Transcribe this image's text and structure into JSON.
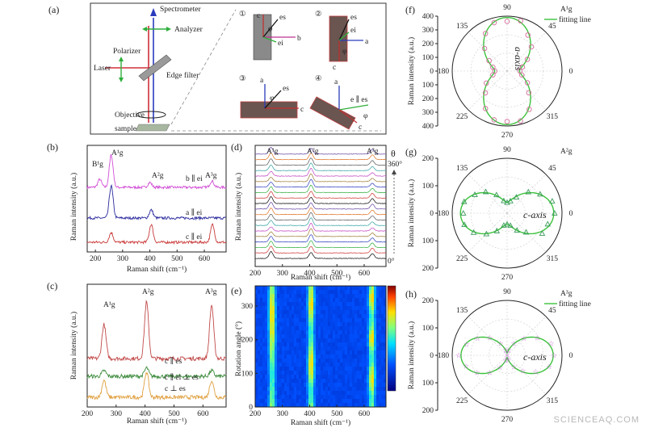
{
  "figure": {
    "watermark": "SCIENCEAQ.COM",
    "panel_labels": [
      "(a)",
      "(b)",
      "(c)",
      "(d)",
      "(e)",
      "(f)",
      "(g)",
      "(h)"
    ]
  },
  "panel_a": {
    "labels": {
      "spectrometer": "Spectrometer",
      "analyzer": "Analyzer",
      "polarizer": "Polarizer",
      "laser": "Laser",
      "edge_filter": "Edge filter",
      "objective": "Objective",
      "sample": "sample"
    },
    "inset_numbers": [
      "①",
      "②",
      "③",
      "④"
    ],
    "inset_axes": {
      "i1": [
        "c",
        "b",
        "es",
        "ei",
        "φ"
      ],
      "i2": [
        "es",
        "a",
        "ei",
        "c",
        "φ"
      ],
      "i3": [
        "a",
        "es",
        "c",
        "φ"
      ],
      "i4": [
        "a",
        "e ∥ es",
        "c",
        "φ"
      ]
    },
    "colors": {
      "laser": "#d0303a",
      "spectrometer": "#2b3bbd",
      "green": "#2fae3c"
    }
  },
  "panel_b": {
    "xlabel": "Raman shift (cm⁻¹)",
    "ylabel": "Raman intensity (a.u.)",
    "xticks": [
      "200",
      "300",
      "400",
      "500",
      "600"
    ],
    "peak_labels": [
      "B¹g",
      "A¹g",
      "A²g",
      "A³g"
    ],
    "trace_labels": [
      "b ∥ ei",
      "a ∥ ei",
      "c ∥ ei"
    ],
    "trace_colors": [
      "#d24fd6",
      "#2a2a9e",
      "#c93a3a"
    ]
  },
  "panel_c": {
    "xlabel": "Raman shift (cm⁻¹)",
    "ylabel": "Raman intensity (a.u.)",
    "xticks": [
      "200",
      "300",
      "400",
      "500",
      "600"
    ],
    "peak_labels": [
      "A¹g",
      "A²g",
      "A³g"
    ],
    "trace_labels": [
      "c ∥ es",
      "c ∥ ei ⊥ es",
      "c ⊥ es"
    ],
    "trace_colors": [
      "#c24a4a",
      "#3c8a3c",
      "#e0a040"
    ]
  },
  "panel_d": {
    "xlabel": "Raman shift (cm⁻¹)",
    "ylabel": "Raman intensity (a.u.)",
    "xticks": [
      "200",
      "300",
      "400",
      "500",
      "600"
    ],
    "peak_labels": [
      "A¹g",
      "A²g",
      "A³g"
    ],
    "theta_label": "θ",
    "theta_top": "360°",
    "theta_bottom": "0°"
  },
  "panel_e": {
    "xlabel": "Raman shift (cm⁻¹)",
    "ylabel": "Rotation angle (°)",
    "xticks": [
      "200",
      "300",
      "400",
      "500",
      "600"
    ],
    "yticks": [
      "0",
      "100",
      "200",
      "300"
    ]
  },
  "polar_common": {
    "angle_labels": [
      "90",
      "45",
      "0",
      "315",
      "270",
      "225",
      "180",
      "135"
    ],
    "ylabel": "Raman intensity (a.u.)",
    "fit_label": "fitting line"
  },
  "panel_f": {
    "legend_symbol": "A¹g",
    "axis_text": "a-axis",
    "ticks": [
      "400",
      "300",
      "200",
      "100",
      "0",
      "100",
      "200",
      "300",
      "400"
    ],
    "color": "#d36a9a"
  },
  "panel_g": {
    "legend_symbol": "A²g",
    "axis_text": "c-axis",
    "ticks": [
      "200",
      "100",
      "0",
      "100",
      "200"
    ],
    "color": "#3a9a5a"
  },
  "panel_h": {
    "legend_symbol": "A³g",
    "axis_text": "c-axis",
    "ticks": [
      "200",
      "100",
      "0",
      "100",
      "200"
    ],
    "color": "#c060d0"
  },
  "chart_data": [
    {
      "id": "panel_b",
      "type": "line",
      "xlabel": "Raman shift (cm⁻¹)",
      "ylabel": "Raman intensity (a.u.)",
      "xlim": [
        170,
        680
      ],
      "series": [
        {
          "name": "b ∥ ei",
          "peaks": [
            [
              216,
              0.25
            ],
            [
              258,
              1.0
            ],
            [
              400,
              0.15
            ],
            [
              628,
              0.2
            ]
          ]
        },
        {
          "name": "a ∥ ei",
          "peaks": [
            [
              258,
              1.0
            ],
            [
              405,
              0.25
            ]
          ]
        },
        {
          "name": "c ∥ ei",
          "peaks": [
            [
              258,
              0.3
            ],
            [
              405,
              0.55
            ],
            [
              630,
              0.55
            ]
          ]
        }
      ]
    },
    {
      "id": "panel_c",
      "type": "line",
      "xlabel": "Raman shift (cm⁻¹)",
      "ylabel": "Raman intensity (a.u.)",
      "xlim": [
        200,
        680
      ],
      "series": [
        {
          "name": "c ∥ es",
          "peaks": [
            [
              258,
              0.6
            ],
            [
              405,
              1.0
            ],
            [
              630,
              0.95
            ]
          ]
        },
        {
          "name": "c ∥ ei ⊥ es",
          "peaks": [
            [
              258,
              0.1
            ],
            [
              405,
              0.15
            ],
            [
              630,
              0.1
            ]
          ]
        },
        {
          "name": "c ⊥ es",
          "peaks": [
            [
              258,
              0.3
            ],
            [
              405,
              0.45
            ],
            [
              630,
              0.3
            ]
          ]
        }
      ]
    },
    {
      "id": "panel_d",
      "type": "line",
      "xlabel": "Raman shift (cm⁻¹)",
      "ylabel": "Raman intensity (a.u.)",
      "xlim": [
        200,
        680
      ],
      "theta_range_deg": [
        0,
        360
      ],
      "peaks_cm": [
        258,
        405,
        630
      ]
    },
    {
      "id": "panel_e",
      "type": "heatmap",
      "xlabel": "Raman shift (cm⁻¹)",
      "ylabel": "Rotation angle (°)",
      "xlim": [
        200,
        680
      ],
      "ylim": [
        0,
        360
      ],
      "bright_bands_cm": [
        262,
        405,
        628
      ]
    },
    {
      "id": "panel_f",
      "type": "scatter",
      "kind": "polar",
      "rlim": [
        0,
        400
      ],
      "legend": [
        "A¹g",
        "fitting line"
      ],
      "fit_A": 300,
      "fit_B": 90,
      "orientation": "vertical"
    },
    {
      "id": "panel_g",
      "type": "scatter",
      "kind": "polar",
      "rlim": [
        0,
        200
      ],
      "legend": [
        "A²g",
        "fitting line"
      ],
      "fit_A": 130,
      "fit_B": 40,
      "orientation": "horizontal"
    },
    {
      "id": "panel_h",
      "type": "scatter",
      "kind": "polar",
      "rlim": [
        0,
        200
      ],
      "legend": [
        "A³g",
        "fitting line"
      ],
      "fit_A": 160,
      "fit_B": 8,
      "orientation": "horizontal"
    }
  ]
}
